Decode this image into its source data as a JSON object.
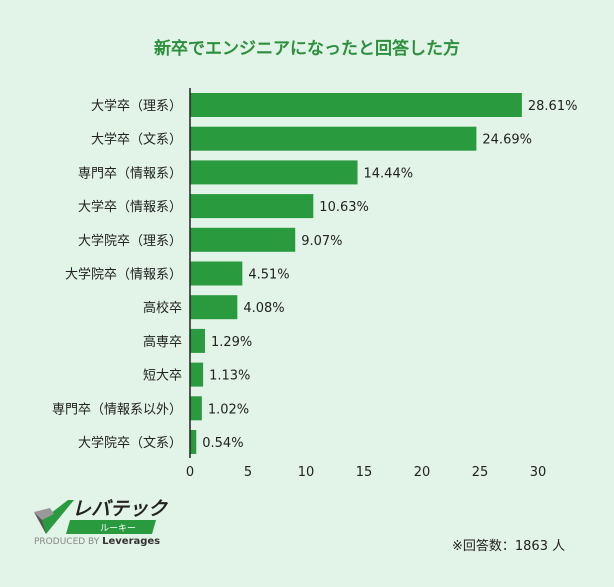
{
  "chart_data": {
    "type": "bar",
    "orientation": "horizontal",
    "title": "新卒でエンジニアになったと回答した方",
    "categories": [
      "大学卒（理系）",
      "大学卒（文系）",
      "専門卒（情報系）",
      "大学卒（情報系）",
      "大学院卒（理系）",
      "大学院卒（情報系）",
      "高校卒",
      "高専卒",
      "短大卒",
      "専門卒（情報系以外）",
      "大学院卒（文系）"
    ],
    "values": [
      28.61,
      24.69,
      14.44,
      10.63,
      9.07,
      4.51,
      4.08,
      1.29,
      1.13,
      1.02,
      0.54
    ],
    "value_labels": [
      "28.61%",
      "24.69%",
      "14.44%",
      "10.63%",
      "9.07%",
      "4.51%",
      "4.08%",
      "1.29%",
      "1.13%",
      "1.02%",
      "0.54%"
    ],
    "xlim": [
      0,
      30
    ],
    "xticks": [
      "0",
      "5",
      "10",
      "15",
      "20",
      "25",
      "30"
    ],
    "grid": false,
    "bar_color": "#2a9a3e"
  },
  "note": "※回答数：1863 人",
  "logo": {
    "name": "レバテック",
    "sub": "ルーキー",
    "produced_by": "PRODUCED BY",
    "brand": "Leverages"
  }
}
